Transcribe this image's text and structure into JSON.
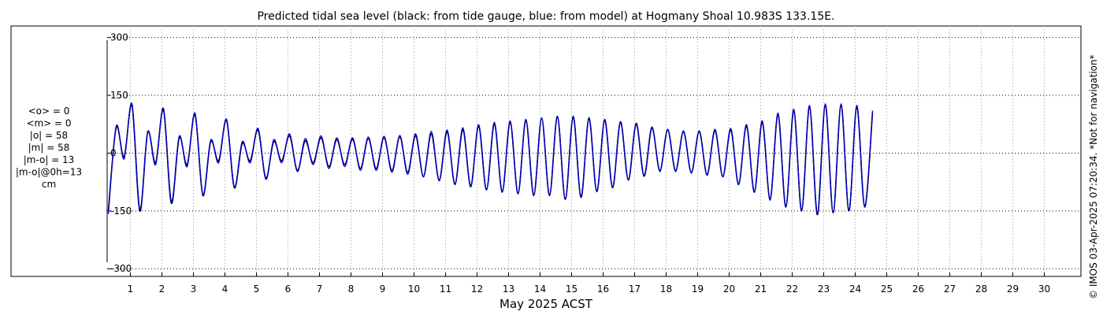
{
  "chart_data": {
    "type": "line",
    "title": "Predicted tidal sea level (black: from tide gauge, blue: from model) at Hogmany Shoal 10.983S 133.15E.",
    "xlabel": "May 2025 ACST",
    "ylabel": "",
    "x_range_days": [
      0.0,
      30.9
    ],
    "x_ticks": [
      1,
      2,
      3,
      4,
      5,
      6,
      7,
      8,
      9,
      10,
      11,
      12,
      13,
      14,
      15,
      16,
      17,
      18,
      19,
      20,
      21,
      22,
      23,
      24,
      25,
      26,
      27,
      28,
      29,
      30
    ],
    "y_range": [
      -320,
      330
    ],
    "y_ticks": [
      300,
      150,
      0,
      -150,
      -300
    ],
    "y_tick_labels": [
      "300",
      "150",
      "0",
      "-150",
      "-300"
    ],
    "grid": true,
    "series": [
      {
        "color": "#000000",
        "samples_per_day": 4,
        "values": [
          -150,
          66,
          -10,
          123,
          -150,
          54,
          -25,
          112,
          -130,
          40,
          -30,
          100,
          -110,
          30,
          -20,
          85,
          -90,
          25,
          -20,
          60,
          -65,
          30,
          -20,
          45,
          -45,
          32,
          -25,
          40,
          -35,
          35,
          -30,
          36,
          -40,
          38,
          -40,
          40,
          -45,
          42,
          -50,
          45,
          -60,
          50,
          -70,
          55,
          -80,
          60,
          -85,
          70,
          -95,
          75,
          -100,
          80,
          -105,
          85,
          -110,
          90,
          -110,
          95,
          -120,
          93,
          -115,
          90,
          -100,
          85,
          -90,
          80,
          -70,
          75,
          -60,
          65,
          -45,
          60,
          -45,
          55,
          -50,
          55,
          -55,
          58,
          -60,
          60,
          -80,
          70,
          -100,
          80,
          -120,
          100,
          -140,
          110,
          -150,
          120,
          -160,
          125,
          -155,
          125,
          -150,
          120,
          -140,
          105
        ]
      },
      {
        "color": "#0000cc",
        "samples_per_day": 4,
        "values": [
          -158,
          70,
          -15,
          128,
          -145,
          56,
          -30,
          116,
          -125,
          44,
          -35,
          104,
          -108,
          34,
          -25,
          88,
          -88,
          30,
          -25,
          64,
          -68,
          35,
          -25,
          50,
          -48,
          38,
          -30,
          45,
          -40,
          40,
          -35,
          40,
          -45,
          42,
          -45,
          44,
          -50,
          46,
          -55,
          50,
          -62,
          56,
          -72,
          60,
          -82,
          66,
          -88,
          74,
          -96,
          80,
          -102,
          84,
          -106,
          88,
          -108,
          92,
          -108,
          96,
          -118,
          96,
          -112,
          92,
          -98,
          88,
          -88,
          82,
          -68,
          78,
          -58,
          68,
          -48,
          62,
          -48,
          58,
          -52,
          58,
          -58,
          62,
          -62,
          64,
          -82,
          74,
          -102,
          84,
          -122,
          104,
          -138,
          114,
          -148,
          124,
          -155,
          128,
          -152,
          128,
          -148,
          124,
          -138,
          110
        ]
      }
    ]
  },
  "stats": {
    "lines": [
      "<o> = 0",
      "<m> = 0",
      "|o| = 58",
      "|m| = 58",
      "|m-o| = 13",
      "|m-o|@0h=13",
      "cm"
    ]
  },
  "copyright": "© IMOS 03-Apr-2025 07:20:34. *Not for navigation*"
}
